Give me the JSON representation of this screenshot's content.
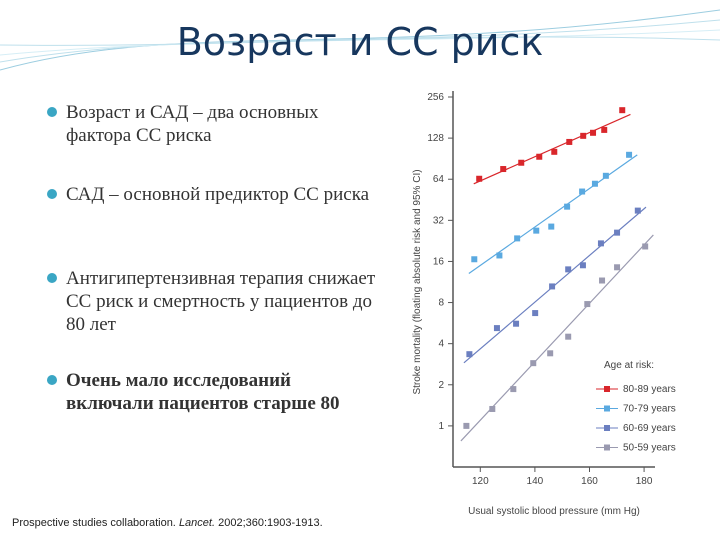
{
  "slide": {
    "title": "Возраст и СС риск",
    "bullets": [
      "Возраст и САД – два основных фактора СС риска",
      "САД – основной предиктор СС риска",
      "Антигипертензивная терапия снижает СС риск и смертность у пациентов до 80 лет",
      "Очень мало исследований включали пациентов старше 80"
    ],
    "citation": {
      "author": "Prospective studies collaboration.",
      "journal": "Lancet.",
      "ref": "2002;360:1903-1913."
    }
  },
  "chart_data": {
    "type": "scatter",
    "x_label": "Usual systolic blood pressure (mm Hg)",
    "y_label": "Stroke mortality (floating absolute risk and 95% CI)",
    "legend_title": "Age at risk:",
    "log_y": true,
    "trend_lines": true,
    "xlim": [
      110,
      184
    ],
    "xticks": [
      120,
      140,
      160,
      180
    ],
    "ylim": [
      0.5,
      256
    ],
    "yticks": [
      1,
      2,
      4,
      8,
      16,
      32,
      64,
      128,
      256
    ],
    "series": [
      {
        "name": "80-89 years",
        "color": "#d9262b",
        "x": [
          119.6,
          128.4,
          135,
          141.6,
          147.1,
          152.6,
          157.7,
          161.3,
          165.4,
          172
        ],
        "values": [
          64.5,
          76,
          84.5,
          93.5,
          101.6,
          120,
          133,
          140,
          147,
          205
        ]
      },
      {
        "name": "70-79 years",
        "color": "#5aa9e0",
        "x": [
          117.8,
          127,
          133.5,
          140.5,
          146,
          151.8,
          157.3,
          162,
          166,
          174.5
        ],
        "values": [
          16.6,
          17.7,
          23.6,
          26.9,
          28.8,
          40.3,
          52,
          59.3,
          67.8,
          96.6
        ]
      },
      {
        "name": "60-69 years",
        "color": "#6b7fc0",
        "x": [
          116,
          126.1,
          133.1,
          140.1,
          146.3,
          152.2,
          157.6,
          164.2,
          170.1,
          177.7
        ],
        "values": [
          3.35,
          5.2,
          5.6,
          6.7,
          10.5,
          14,
          15,
          21.7,
          26,
          37.7
        ]
      },
      {
        "name": "50-59 years",
        "color": "#9a9ab0",
        "x": [
          114.9,
          124.4,
          132.1,
          139.4,
          145.6,
          152.2,
          159.2,
          164.6,
          170.1,
          180.4
        ],
        "values": [
          1,
          1.33,
          1.86,
          2.88,
          3.4,
          4.5,
          7.8,
          11.6,
          14.5,
          20.6
        ]
      }
    ]
  }
}
